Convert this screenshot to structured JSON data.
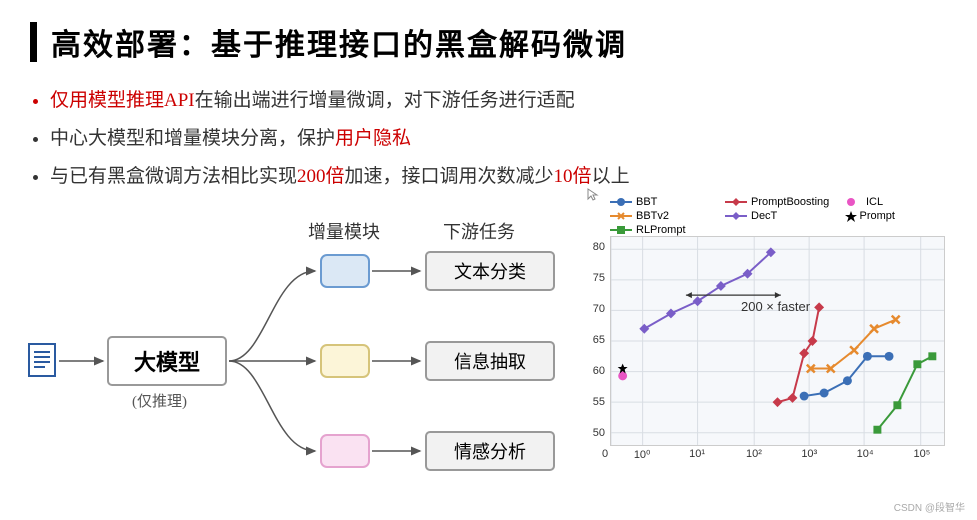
{
  "title": "高效部署：基于推理接口的黑盒解码微调",
  "bullets": [
    {
      "pre": "仅用模型推理API",
      "pre_red": true,
      "post": "在输出端进行增量微调，对下游任务进行适配",
      "marker": "red"
    },
    {
      "pre": "中心大模型和增量模块分离，保护",
      "pre_red": false,
      "post": "用户隐私",
      "post_red": true,
      "marker": "blk"
    },
    {
      "segs": [
        {
          "t": "与已有黑盒微调方法相比实现",
          "r": false
        },
        {
          "t": "200倍",
          "r": true
        },
        {
          "t": "加速，接口调用次数减少",
          "r": false
        },
        {
          "t": "10倍",
          "r": true
        },
        {
          "t": "以上",
          "r": false
        }
      ],
      "marker": "blk"
    }
  ],
  "diagram": {
    "header_module": "增量模块",
    "header_task": "下游任务",
    "big_model": "大模型",
    "big_note": "(仅推理)",
    "tasks": [
      "文本分类",
      "信息抽取",
      "情感分析"
    ],
    "module_colors": [
      {
        "stroke": "#6b9bd1",
        "fill": "#dbe8f5"
      },
      {
        "stroke": "#d6c47a",
        "fill": "#fcf5d8"
      },
      {
        "stroke": "#e5a3cf",
        "fill": "#fae2f2"
      }
    ],
    "box_stroke": "#999",
    "box_fill": "#f2f2f2",
    "arrow_color": "#555"
  },
  "chart": {
    "type": "scatter-line-logx",
    "annotation": "200 × faster",
    "xlim_log": [
      -0.5,
      5.2
    ],
    "ylim": [
      48,
      82
    ],
    "yticks": [
      50,
      55,
      60,
      65,
      70,
      75,
      80
    ],
    "xticks": [
      "0",
      "10⁰",
      "10¹",
      "10²",
      "10³",
      "10⁴",
      "10⁵"
    ],
    "xtick_pos": [
      0.0,
      0.095,
      0.26,
      0.43,
      0.595,
      0.76,
      0.93
    ],
    "background": "#f6f8fb",
    "grid_color": "#d8dde3",
    "legend": [
      {
        "name": "BBT",
        "color": "#3b6fb6",
        "marker": "circle",
        "line": true
      },
      {
        "name": "BBTv2",
        "color": "#e68a2e",
        "marker": "x",
        "line": true
      },
      {
        "name": "RLPrompt",
        "color": "#3a9a3a",
        "marker": "square",
        "line": true
      },
      {
        "name": "PromptBoosting",
        "color": "#c73a4a",
        "marker": "diamond",
        "line": true
      },
      {
        "name": "DecT",
        "color": "#7a5ec8",
        "marker": "diamond",
        "line": true
      },
      {
        "name": "ICL",
        "color": "#e955c4",
        "marker": "circle",
        "line": false
      },
      {
        "name": "Prompt",
        "color": "#000000",
        "marker": "star",
        "line": false
      }
    ],
    "series": {
      "DecT": {
        "color": "#7a5ec8",
        "marker": "diamond",
        "pts": [
          [
            0.1,
            67
          ],
          [
            0.18,
            69.5
          ],
          [
            0.26,
            71.5
          ],
          [
            0.33,
            74
          ],
          [
            0.41,
            76
          ],
          [
            0.48,
            79.5
          ]
        ]
      },
      "PromptBoosting": {
        "color": "#c73a4a",
        "marker": "diamond",
        "pts": [
          [
            0.5,
            55
          ],
          [
            0.545,
            55.7
          ],
          [
            0.58,
            63
          ],
          [
            0.605,
            65
          ],
          [
            0.625,
            70.5
          ]
        ]
      },
      "BBT": {
        "color": "#3b6fb6",
        "marker": "circle",
        "pts": [
          [
            0.58,
            56
          ],
          [
            0.64,
            56.5
          ],
          [
            0.71,
            58.5
          ],
          [
            0.77,
            62.5
          ],
          [
            0.835,
            62.5
          ]
        ]
      },
      "BBTv2": {
        "color": "#e68a2e",
        "marker": "x",
        "pts": [
          [
            0.6,
            60.5
          ],
          [
            0.66,
            60.5
          ],
          [
            0.73,
            63.5
          ],
          [
            0.79,
            67
          ],
          [
            0.855,
            68.5
          ]
        ]
      },
      "RLPrompt": {
        "color": "#3a9a3a",
        "marker": "square",
        "pts": [
          [
            0.8,
            50.5
          ],
          [
            0.86,
            54.5
          ],
          [
            0.92,
            61.2
          ],
          [
            0.965,
            62.5
          ]
        ]
      },
      "ICL": {
        "color": "#e955c4",
        "marker": "circle",
        "pts": [
          [
            0.035,
            59.3
          ]
        ]
      },
      "Prompt": {
        "color": "#000000",
        "marker": "star",
        "pts": [
          [
            0.035,
            60.5
          ]
        ]
      }
    }
  },
  "watermark": "CSDN @段智华"
}
